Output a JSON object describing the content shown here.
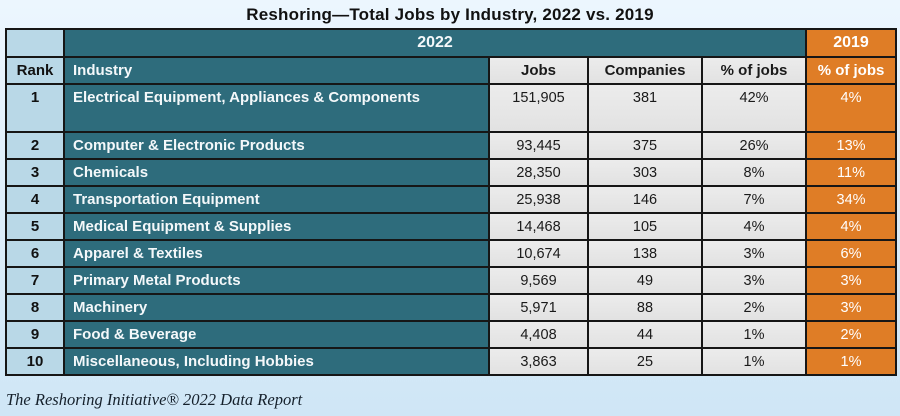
{
  "title": "Reshoring—Total Jobs by Industry, 2022 vs. 2019",
  "footer": {
    "text": "The Reshoring Initiative® 2022 Data Report"
  },
  "colors": {
    "teal": "#2E6C7C",
    "light_blue": "#B9D8E7",
    "cell_gray": "#E7E7E7",
    "orange": "#DF7D26",
    "border_black": "#161616",
    "outer_border_gray": "#55585C",
    "page_background_top": "#ECF6FE",
    "page_background_bottom": "#CFE6F6"
  },
  "chart_data": {
    "type": "table",
    "title": "Reshoring—Total Jobs by Industry, 2022 vs. 2019",
    "column_groups": [
      {
        "label": "2022",
        "span": 4
      },
      {
        "label": "2019",
        "span": 1
      }
    ],
    "columns": [
      "Rank",
      "Industry",
      "Jobs",
      "Companies",
      "% of jobs",
      "% of jobs"
    ],
    "rows": [
      {
        "rank": "1",
        "industry": "Electrical Equipment, Appliances & Components",
        "jobs": "151,905",
        "companies": "381",
        "pct_2022": "42%",
        "pct_2019": "4%"
      },
      {
        "rank": "2",
        "industry": "Computer & Electronic Products",
        "jobs": "93,445",
        "companies": "375",
        "pct_2022": "26%",
        "pct_2019": "13%"
      },
      {
        "rank": "3",
        "industry": "Chemicals",
        "jobs": "28,350",
        "companies": "303",
        "pct_2022": "8%",
        "pct_2019": "11%"
      },
      {
        "rank": "4",
        "industry": "Transportation Equipment",
        "jobs": "25,938",
        "companies": "146",
        "pct_2022": "7%",
        "pct_2019": "34%"
      },
      {
        "rank": "5",
        "industry": "Medical Equipment & Supplies",
        "jobs": "14,468",
        "companies": "105",
        "pct_2022": "4%",
        "pct_2019": "4%"
      },
      {
        "rank": "6",
        "industry": "Apparel & Textiles",
        "jobs": "10,674",
        "companies": "138",
        "pct_2022": "3%",
        "pct_2019": "6%"
      },
      {
        "rank": "7",
        "industry": "Primary Metal Products",
        "jobs": "9,569",
        "companies": "49",
        "pct_2022": "3%",
        "pct_2019": "3%"
      },
      {
        "rank": "8",
        "industry": "Machinery",
        "jobs": "5,971",
        "companies": "88",
        "pct_2022": "2%",
        "pct_2019": "3%"
      },
      {
        "rank": "9",
        "industry": "Food & Beverage",
        "jobs": "4,408",
        "companies": "44",
        "pct_2022": "1%",
        "pct_2019": "2%"
      },
      {
        "rank": "10",
        "industry": "Miscellaneous, Including Hobbies",
        "jobs": "3,863",
        "companies": "25",
        "pct_2022": "1%",
        "pct_2019": "1%"
      }
    ]
  }
}
